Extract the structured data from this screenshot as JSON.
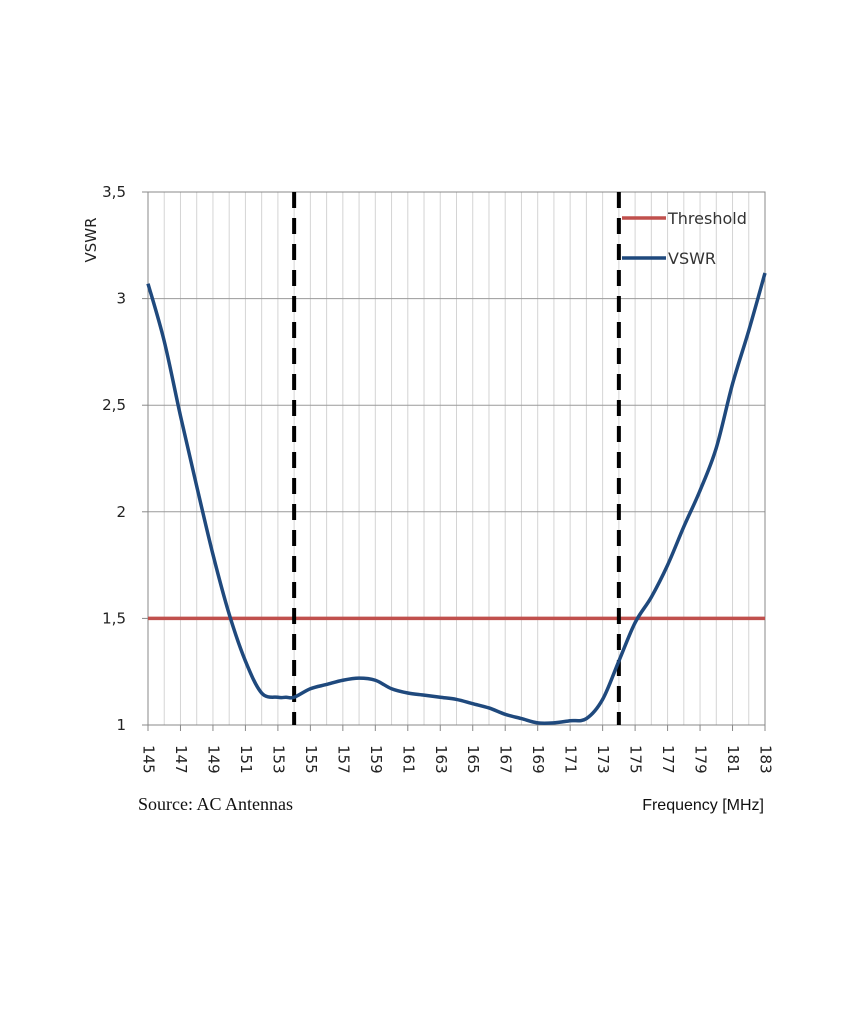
{
  "source": "Source: AC Antennas",
  "chart_data": {
    "type": "line",
    "title": "",
    "xlabel": "Frequency [MHz]",
    "ylabel": "VSWR",
    "xlim": [
      145,
      183
    ],
    "ylim": [
      1,
      3.5
    ],
    "x_ticks": [
      "145",
      "147",
      "149",
      "151",
      "153",
      "155",
      "157",
      "159",
      "161",
      "163",
      "165",
      "167",
      "169",
      "171",
      "173",
      "175",
      "177",
      "179",
      "181",
      "183"
    ],
    "y_ticks": [
      {
        "value": 1,
        "label": "1"
      },
      {
        "value": 1.5,
        "label": "1,5"
      },
      {
        "value": 2,
        "label": "2"
      },
      {
        "value": 2.5,
        "label": "2,5"
      },
      {
        "value": 3,
        "label": "3"
      },
      {
        "value": 3.5,
        "label": "3,5"
      }
    ],
    "grid": true,
    "legend_position": "top-right",
    "vertical_markers": [
      154,
      174
    ],
    "series": [
      {
        "name": "Threshold",
        "color": "#c0504d",
        "x": [
          145,
          183
        ],
        "y": [
          1.5,
          1.5
        ]
      },
      {
        "name": "VSWR",
        "color": "#1f497d",
        "x": [
          145,
          146,
          147,
          148,
          149,
          150,
          151,
          152,
          153,
          153.5,
          154,
          155,
          156,
          157,
          158,
          159,
          160,
          161,
          162,
          163,
          164,
          165,
          166,
          167,
          168,
          169,
          170,
          171,
          172,
          173,
          174,
          175,
          176,
          177,
          178,
          179,
          180,
          181,
          182,
          183
        ],
        "y": [
          3.07,
          2.8,
          2.45,
          2.12,
          1.8,
          1.52,
          1.3,
          1.15,
          1.13,
          1.13,
          1.13,
          1.17,
          1.19,
          1.21,
          1.22,
          1.21,
          1.17,
          1.15,
          1.14,
          1.13,
          1.12,
          1.1,
          1.08,
          1.05,
          1.03,
          1.01,
          1.01,
          1.02,
          1.03,
          1.12,
          1.3,
          1.48,
          1.6,
          1.75,
          1.93,
          2.1,
          2.3,
          2.6,
          2.85,
          3.12
        ]
      }
    ]
  }
}
